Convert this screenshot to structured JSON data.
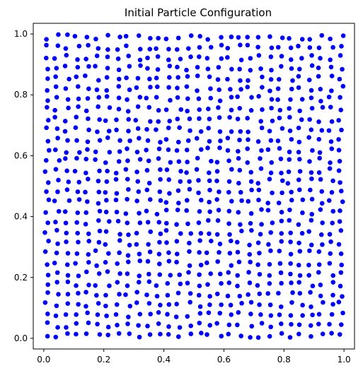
{
  "chart_data": {
    "type": "scatter",
    "title": "Initial Particle Configuration",
    "xlabel": "",
    "ylabel": "",
    "xlim": [
      -0.035,
      1.035
    ],
    "ylim": [
      -0.035,
      1.035
    ],
    "grid": false,
    "marker_color": "#0000ff",
    "xticks": [
      0.0,
      0.2,
      0.4,
      0.6,
      0.8,
      1.0
    ],
    "yticks": [
      0.0,
      0.2,
      0.4,
      0.6,
      0.8,
      1.0
    ],
    "xtick_labels": [
      "0.0",
      "0.2",
      "0.4",
      "0.6",
      "0.8",
      "1.0"
    ],
    "ytick_labels": [
      "0.0",
      "0.2",
      "0.4",
      "0.6",
      "0.8",
      "1.0"
    ],
    "series": [
      {
        "points_description": "approximately jittered 30x30 lattice",
        "grid_n": 30,
        "x_range": [
          0.01,
          0.99
        ],
        "y_range": [
          0.01,
          0.99
        ],
        "jitter": 0.008
      }
    ]
  }
}
